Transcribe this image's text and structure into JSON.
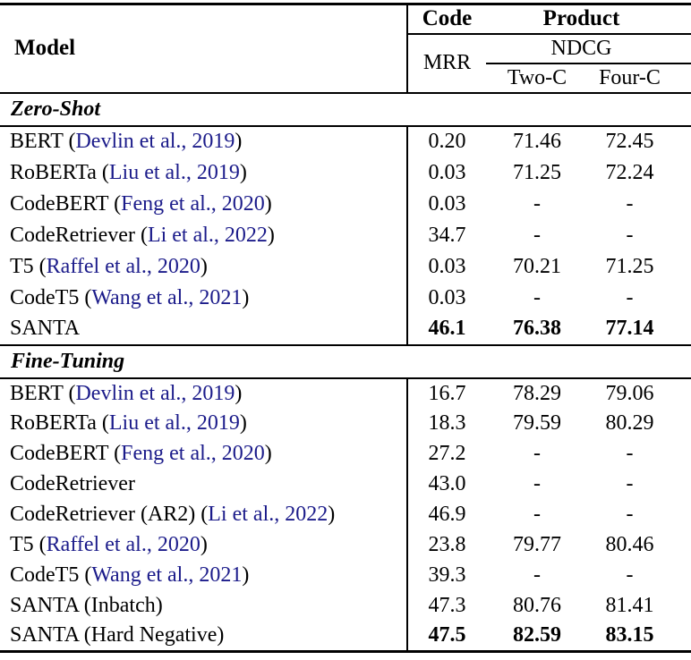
{
  "colors": {
    "background": "#ffffff",
    "text": "#000000",
    "citation": "#1b1b8a"
  },
  "header": {
    "model": "Model",
    "group_code": "Code",
    "group_product": "Product",
    "mrr": "MRR",
    "ndcg": "NDCG",
    "two_c": "Two-C",
    "four_c": "Four-C"
  },
  "sections": [
    {
      "label": "Zero-Shot",
      "rows": [
        {
          "model": [
            {
              "t": "BERT ("
            },
            {
              "t": "Devlin et al., 2019",
              "cite": true
            },
            {
              "t": ")"
            }
          ],
          "values": [
            "0.20",
            "71.46",
            "72.45"
          ],
          "bold": false
        },
        {
          "model": [
            {
              "t": "RoBERTa ("
            },
            {
              "t": "Liu et al., 2019",
              "cite": true
            },
            {
              "t": ")"
            }
          ],
          "values": [
            "0.03",
            "71.25",
            "72.24"
          ],
          "bold": false
        },
        {
          "model": [
            {
              "t": "CodeBERT ("
            },
            {
              "t": "Feng et al., 2020",
              "cite": true
            },
            {
              "t": ")"
            }
          ],
          "values": [
            "0.03",
            "-",
            "-"
          ],
          "bold": false
        },
        {
          "model": [
            {
              "t": "CodeRetriever ("
            },
            {
              "t": "Li et al., 2022",
              "cite": true
            },
            {
              "t": ")"
            }
          ],
          "values": [
            "34.7",
            "-",
            "-"
          ],
          "bold": false
        },
        {
          "model": [
            {
              "t": "T5 ("
            },
            {
              "t": "Raffel et al., 2020",
              "cite": true
            },
            {
              "t": ")"
            }
          ],
          "values": [
            "0.03",
            "70.21",
            "71.25"
          ],
          "bold": false
        },
        {
          "model": [
            {
              "t": "CodeT5 ("
            },
            {
              "t": "Wang et al., 2021",
              "cite": true
            },
            {
              "t": ")"
            }
          ],
          "values": [
            "0.03",
            "-",
            "-"
          ],
          "bold": false
        },
        {
          "model": [
            {
              "t": "SANTA"
            }
          ],
          "values": [
            "46.1",
            "76.38",
            "77.14"
          ],
          "bold": true
        }
      ]
    },
    {
      "label": "Fine-Tuning",
      "rows": [
        {
          "model": [
            {
              "t": "BERT ("
            },
            {
              "t": "Devlin et al., 2019",
              "cite": true
            },
            {
              "t": ")"
            }
          ],
          "values": [
            "16.7",
            "78.29",
            "79.06"
          ],
          "bold": false
        },
        {
          "model": [
            {
              "t": "RoBERTa ("
            },
            {
              "t": "Liu et al., 2019",
              "cite": true
            },
            {
              "t": ")"
            }
          ],
          "values": [
            "18.3",
            "79.59",
            "80.29"
          ],
          "bold": false
        },
        {
          "model": [
            {
              "t": "CodeBERT ("
            },
            {
              "t": "Feng et al., 2020",
              "cite": true
            },
            {
              "t": ")"
            }
          ],
          "values": [
            "27.2",
            "-",
            "-"
          ],
          "bold": false
        },
        {
          "model": [
            {
              "t": "CodeRetriever"
            }
          ],
          "values": [
            "43.0",
            "-",
            "-"
          ],
          "bold": false
        },
        {
          "model": [
            {
              "t": "CodeRetriever (AR2) ("
            },
            {
              "t": "Li et al., 2022",
              "cite": true
            },
            {
              "t": ")"
            }
          ],
          "values": [
            "46.9",
            "-",
            "-"
          ],
          "bold": false
        },
        {
          "model": [
            {
              "t": "T5 ("
            },
            {
              "t": "Raffel et al., 2020",
              "cite": true
            },
            {
              "t": ")"
            }
          ],
          "values": [
            "23.8",
            "79.77",
            "80.46"
          ],
          "bold": false
        },
        {
          "model": [
            {
              "t": "CodeT5 ("
            },
            {
              "t": "Wang et al., 2021",
              "cite": true
            },
            {
              "t": ")"
            }
          ],
          "values": [
            "39.3",
            "-",
            "-"
          ],
          "bold": false
        },
        {
          "model": [
            {
              "t": "SANTA (Inbatch)"
            }
          ],
          "values": [
            "47.3",
            "80.76",
            "81.41"
          ],
          "bold": false
        },
        {
          "model": [
            {
              "t": "SANTA (Hard Negative)"
            }
          ],
          "values": [
            "47.5",
            "82.59",
            "83.15"
          ],
          "bold": true
        }
      ]
    }
  ]
}
